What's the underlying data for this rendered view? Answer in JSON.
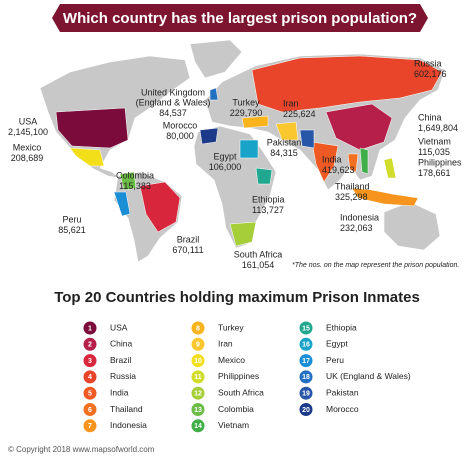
{
  "title": "Which country has the largest prison population?",
  "map_labels": [
    {
      "name": "Russia",
      "value": "602,176"
    },
    {
      "name": "USA",
      "value": "2,145,100"
    },
    {
      "name": "Mexico",
      "value": "208,689"
    },
    {
      "name": "Colombia",
      "value": "115,383"
    },
    {
      "name": "Peru",
      "value": "85,621"
    },
    {
      "name": "Brazil",
      "value": "670,111"
    },
    {
      "name": "United Kingdom",
      "subname": "(England & Wales)",
      "value": "84,537"
    },
    {
      "name": "Turkey",
      "value": "229,790"
    },
    {
      "name": "Morocco",
      "value": "80,000"
    },
    {
      "name": "Iran",
      "value": "225,624"
    },
    {
      "name": "Pakistan",
      "value": "84,315"
    },
    {
      "name": "India",
      "value": "419,623"
    },
    {
      "name": "Egypt",
      "value": "106,000"
    },
    {
      "name": "Ethiopia",
      "value": "113,727"
    },
    {
      "name": "South Africa",
      "value": "161,054"
    },
    {
      "name": "Thailand",
      "value": "325,298"
    },
    {
      "name": "Indonesia",
      "value": "232,063"
    },
    {
      "name": "China",
      "value": "1,649,804"
    },
    {
      "name": "Vietnam",
      "value": "115,035"
    },
    {
      "name": "Philippines",
      "value": "178,661"
    }
  ],
  "note": "*The nos. on the map represent the prison population.",
  "legend_title": "Top 20 Countries holding maximum Prison Inmates",
  "legend": [
    {
      "rank": "1",
      "country": "USA",
      "color": "#7a0b3b"
    },
    {
      "rank": "2",
      "country": "China",
      "color": "#b51f4a"
    },
    {
      "rank": "3",
      "country": "Brazil",
      "color": "#d8263c"
    },
    {
      "rank": "4",
      "country": "Russia",
      "color": "#e8452b"
    },
    {
      "rank": "5",
      "country": "India",
      "color": "#ef5a24"
    },
    {
      "rank": "6",
      "country": "Thailand",
      "color": "#f37021"
    },
    {
      "rank": "7",
      "country": "Indonesia",
      "color": "#f7941d"
    },
    {
      "rank": "8",
      "country": "Turkey",
      "color": "#f9b31b"
    },
    {
      "rank": "9",
      "country": "Iran",
      "color": "#fbc72e"
    },
    {
      "rank": "10",
      "country": "Mexico",
      "color": "#f2df1a"
    },
    {
      "rank": "11",
      "country": "Philippines",
      "color": "#d2dc2a"
    },
    {
      "rank": "12",
      "country": "South Africa",
      "color": "#a6ce39"
    },
    {
      "rank": "13",
      "country": "Colombia",
      "color": "#6cbd45"
    },
    {
      "rank": "14",
      "country": "Vietnam",
      "color": "#3fae49"
    },
    {
      "rank": "15",
      "country": "Ethiopia",
      "color": "#1fa88f"
    },
    {
      "rank": "16",
      "country": "Egypt",
      "color": "#1aa3c9"
    },
    {
      "rank": "17",
      "country": "Peru",
      "color": "#1a8fd6"
    },
    {
      "rank": "18",
      "country": "UK (England & Wales)",
      "color": "#2370c2"
    },
    {
      "rank": "19",
      "country": "Pakistan",
      "color": "#2756a8"
    },
    {
      "rank": "20",
      "country": "Morocco",
      "color": "#1d3a8a"
    }
  ],
  "footer": "© Copyright 2018 www.mapsofworld.com"
}
